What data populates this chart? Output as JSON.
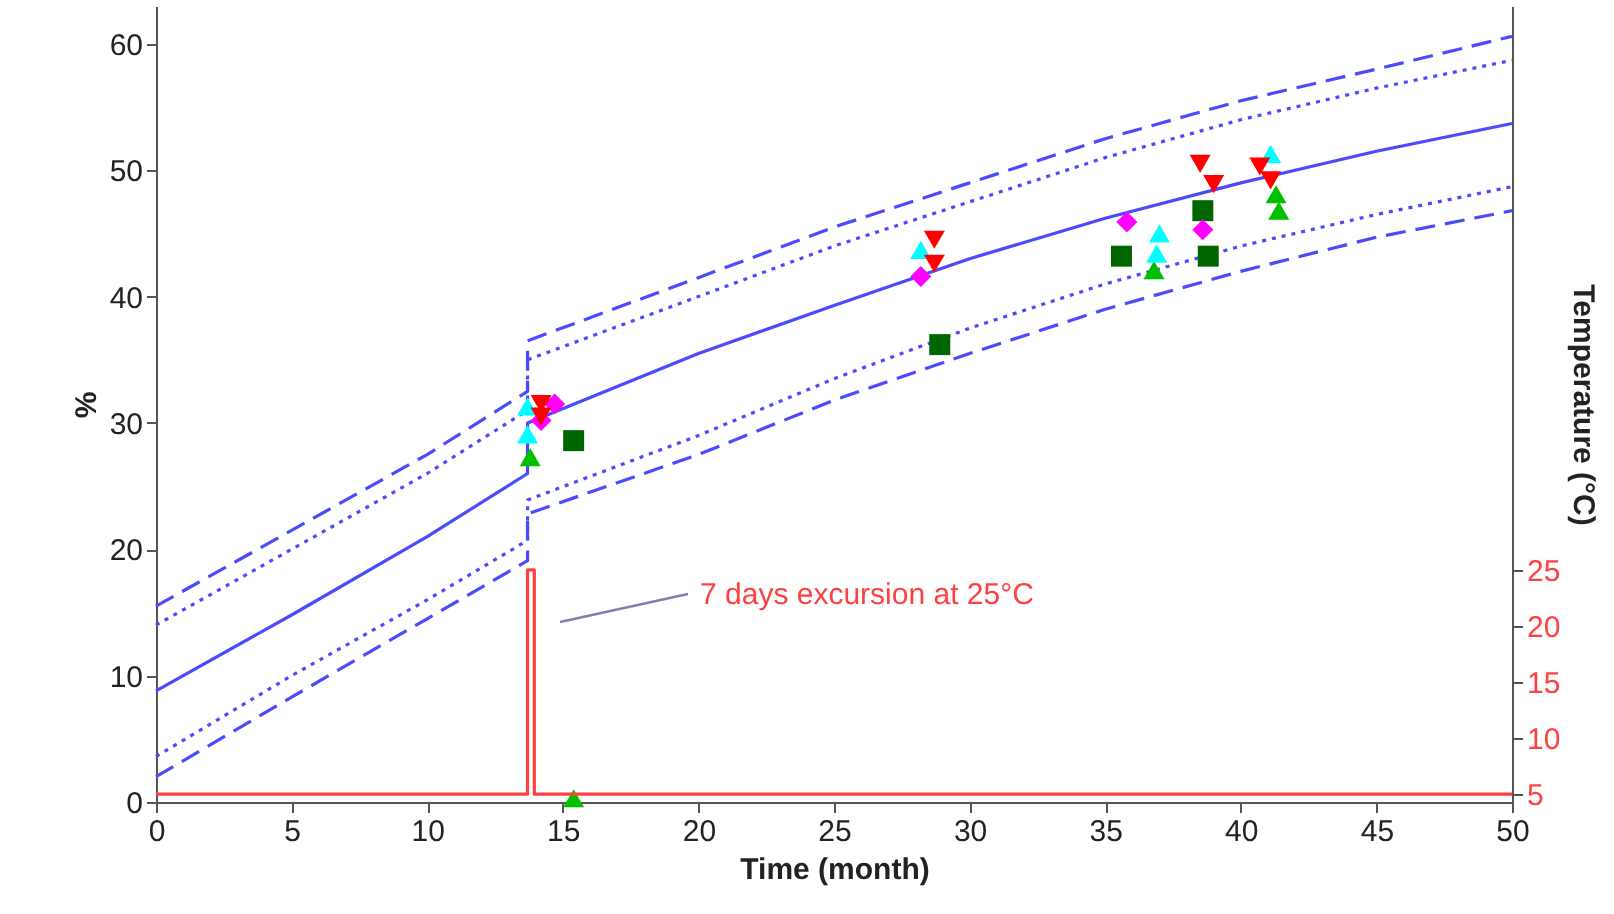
{
  "chart_data": {
    "type": "line",
    "xlabel": "Time (month)",
    "ylabel": "%",
    "y2label": "Temperature (°C)",
    "xlim": [
      0,
      50
    ],
    "xticks": [
      0,
      5,
      10,
      15,
      20,
      25,
      30,
      35,
      40,
      45,
      50
    ],
    "ylim": [
      0,
      63
    ],
    "yticks": [
      0,
      10,
      20,
      30,
      40,
      50,
      60
    ],
    "y2lim": [
      4.3,
      75.3
    ],
    "y2ticks": [
      5,
      10,
      15,
      20,
      25
    ],
    "grid": false,
    "annotations": [
      "7 days excursion at 25°C"
    ],
    "series": [
      {
        "type": "line",
        "line_style": "solid",
        "color": "#4a4aff",
        "x": [
          0,
          5,
          10,
          13.7,
          13.7,
          20,
          25,
          30,
          35,
          40,
          45,
          50
        ],
        "values": [
          8.8,
          14.8,
          21,
          26,
          30,
          35.5,
          39.3,
          43,
          46.2,
          49,
          51.5,
          53.7
        ]
      },
      {
        "type": "line",
        "line_style": "dashed",
        "color": "#4a4aff",
        "x": [
          0,
          5,
          10,
          13.7,
          13.7,
          20,
          25,
          30,
          35,
          40,
          45,
          50
        ],
        "values": [
          15.5,
          21.5,
          27.5,
          32.5,
          36.5,
          41.5,
          45.5,
          49,
          52.5,
          55.5,
          58,
          60.6
        ]
      },
      {
        "type": "line",
        "line_style": "dotted",
        "color": "#4a4aff",
        "x": [
          0,
          5,
          10,
          13.7,
          13.7,
          20,
          25,
          30,
          35,
          40,
          45,
          50
        ],
        "values": [
          14,
          20,
          26,
          31,
          35,
          40,
          44,
          47.5,
          51,
          54,
          56.5,
          58.7
        ]
      },
      {
        "type": "line",
        "line_style": "dotted",
        "color": "#4a4aff",
        "x": [
          0,
          5,
          10,
          13.7,
          13.7,
          20,
          25,
          30,
          35,
          40,
          45,
          50
        ],
        "values": [
          3.6,
          10,
          16,
          20.7,
          23.9,
          29,
          33.5,
          37.5,
          41,
          44,
          46.5,
          48.7
        ]
      },
      {
        "type": "line",
        "line_style": "dashed",
        "color": "#4a4aff",
        "x": [
          0,
          5,
          10,
          13.7,
          13.7,
          20,
          25,
          30,
          35,
          40,
          45,
          50
        ],
        "values": [
          2,
          8.3,
          14.5,
          19.1,
          22.8,
          27.5,
          31.8,
          35.5,
          39,
          42,
          44.7,
          46.8
        ]
      },
      {
        "type": "line",
        "line_style": "solid",
        "color": "#ff4040",
        "axis": "y2",
        "x": [
          0,
          13.7,
          13.7,
          13.95,
          13.95,
          50
        ],
        "values": [
          5,
          5,
          25,
          25,
          5,
          5
        ]
      },
      {
        "type": "scatter",
        "marker": "square",
        "color": "#006600",
        "x": [
          15.4,
          28.9,
          35.6,
          38.6,
          38.8
        ],
        "values": [
          28.6,
          36.2,
          43.2,
          46.8,
          43.2
        ]
      },
      {
        "type": "scatter",
        "marker": "triangle",
        "color": "#00c000",
        "x": [
          13.8,
          15.4,
          36.8,
          41.3,
          41.4
        ],
        "values": [
          27.3,
          0.3,
          42.1,
          48.1,
          46.8
        ]
      },
      {
        "type": "scatter",
        "marker": "diamond",
        "color": "#ff00ff",
        "x": [
          14.2,
          14.7,
          28.2,
          35.8,
          38.6
        ],
        "values": [
          30.2,
          31.5,
          41.6,
          45.9,
          45.3
        ]
      },
      {
        "type": "scatter",
        "marker": "triangle",
        "color": "#00ffff",
        "x": [
          13.7,
          13.7,
          28.2,
          36.9,
          37.0,
          41.1
        ],
        "values": [
          31.3,
          29.1,
          43.7,
          43.4,
          45,
          51.3
        ]
      },
      {
        "type": "scatter",
        "marker": "triangle-down",
        "color": "#ff0000",
        "x": [
          14.2,
          14.2,
          28.7,
          28.7,
          38.5,
          39.0,
          40.7,
          41.1
        ],
        "values": [
          31.5,
          30.5,
          44.5,
          42.6,
          50.5,
          48.9,
          50.3,
          49.2
        ]
      }
    ]
  }
}
